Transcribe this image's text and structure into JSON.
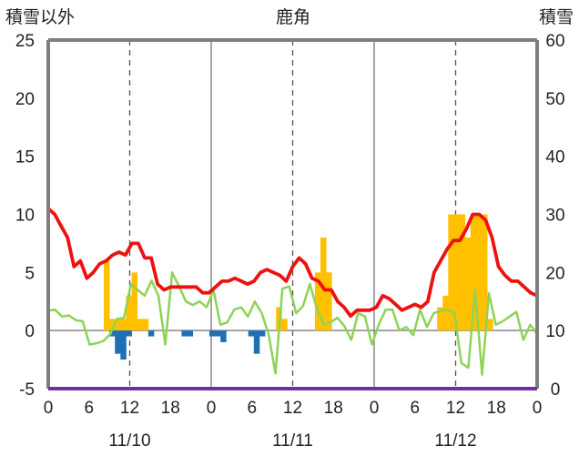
{
  "chart_data": {
    "type": "bar+line",
    "title": "鹿角",
    "left_axis_label": "積雪以外",
    "right_axis_label": "積雪",
    "left_ylim": [
      -5,
      25
    ],
    "left_ticks": [
      -5,
      0,
      5,
      10,
      15,
      20,
      25
    ],
    "right_ylim": [
      0,
      60
    ],
    "right_ticks": [
      0,
      10,
      20,
      30,
      40,
      50,
      60
    ],
    "x_hour_labels": [
      "0",
      "6",
      "12",
      "18",
      "0",
      "6",
      "12",
      "18",
      "0",
      "6",
      "12",
      "18",
      "0"
    ],
    "x_date_labels": [
      "11/10",
      "11/11",
      "11/12"
    ],
    "colors": {
      "precip_bar": "#ffc000",
      "neg_bar": "#1f6fb5",
      "snow_line": "#ee1111",
      "temp_line": "#8ed357",
      "axis": "#7f7f7f",
      "baseline": "#7030a0"
    },
    "series": [
      {
        "axis": "left",
        "kind": "bar",
        "values": [
          0,
          0,
          0,
          0,
          0,
          0,
          0,
          0,
          0,
          0,
          6,
          1,
          1,
          1,
          3,
          5,
          1,
          1,
          0,
          0,
          0,
          0,
          0,
          0,
          0,
          0,
          0,
          0,
          0,
          0,
          0,
          0,
          0,
          0,
          0,
          0,
          0,
          0,
          0,
          0,
          0,
          2,
          1,
          0,
          0,
          0,
          0,
          0,
          5,
          8,
          5,
          0,
          0,
          0,
          0,
          0,
          0,
          0,
          0,
          0,
          0,
          0,
          0,
          0,
          0,
          0,
          0,
          0,
          0,
          0,
          2,
          3,
          10,
          10,
          10,
          8,
          10,
          10,
          10,
          1,
          0,
          0,
          0,
          0,
          0,
          0,
          0,
          0
        ]
      },
      {
        "axis": "left",
        "kind": "bar",
        "values": [
          0,
          0,
          0,
          0,
          0,
          0,
          0,
          0,
          0,
          0,
          0,
          -0.5,
          -2,
          -2.5,
          -0.5,
          0,
          0,
          0,
          -0.5,
          0,
          0,
          0,
          0,
          0,
          -0.5,
          -0.5,
          0,
          0,
          0,
          -0.5,
          -0.5,
          -1,
          0,
          0,
          0,
          0,
          -0.5,
          -2,
          -0.5,
          0,
          0,
          0,
          0,
          0,
          0,
          0,
          0,
          0,
          0,
          0,
          0,
          0,
          0,
          0,
          0,
          0,
          0,
          0,
          0,
          0,
          0,
          0,
          0,
          0,
          0,
          0,
          0,
          0,
          0,
          0,
          0,
          0,
          0,
          0,
          0,
          0,
          0,
          0,
          0,
          0,
          0,
          0,
          0,
          0,
          0,
          0,
          0,
          0
        ]
      },
      {
        "axis": "right",
        "kind": "line",
        "values": [
          31,
          30,
          28,
          26,
          21,
          22,
          19,
          20,
          21.5,
          22,
          23,
          23.5,
          23,
          25,
          25,
          22.5,
          22.5,
          18,
          17,
          17.5,
          17.5,
          17.5,
          17.5,
          17.5,
          16.5,
          16.5,
          17.5,
          18.5,
          18.5,
          19,
          18.5,
          18,
          18.5,
          20,
          20.5,
          20,
          19.5,
          18.5,
          21,
          22.5,
          21.5,
          19,
          18.5,
          17,
          17,
          15,
          14,
          12.5,
          13.5,
          13.5,
          13.5,
          14,
          16,
          15.5,
          14.5,
          13.5,
          14,
          14.5,
          14,
          15,
          20,
          22,
          24,
          25.5,
          25.5,
          27.5,
          30,
          30,
          29,
          26,
          21,
          19.5,
          18.5,
          18.5,
          17.5,
          16.5,
          16
        ]
      },
      {
        "axis": "left",
        "kind": "line",
        "values": [
          1.7,
          1.8,
          1.2,
          1.3,
          0.9,
          0.8,
          -1.2,
          -1.1,
          -0.9,
          -0.3,
          1,
          1.1,
          4,
          3.5,
          3,
          4.3,
          3,
          -1.2,
          5,
          3.8,
          2.5,
          2.2,
          2.5,
          2,
          3.5,
          0.5,
          0.7,
          1.8,
          2,
          1.2,
          2.5,
          1.5,
          -0.3,
          -3.7,
          3.6,
          3.8,
          1.5,
          2.1,
          4,
          1.9,
          0.5,
          0.7,
          1.1,
          0.4,
          -0.8,
          1.5,
          1.2,
          -1.2,
          0.5,
          1.8,
          1.8,
          0,
          0.3,
          -0.4,
          1.8,
          0.3,
          1.5,
          1.7,
          1.8,
          1.5,
          -2.8,
          -3.2,
          3.5,
          -3.8,
          3.2,
          0.5,
          0.8,
          1.2,
          1.6,
          -0.8,
          0.5,
          -0.3
        ]
      }
    ]
  }
}
